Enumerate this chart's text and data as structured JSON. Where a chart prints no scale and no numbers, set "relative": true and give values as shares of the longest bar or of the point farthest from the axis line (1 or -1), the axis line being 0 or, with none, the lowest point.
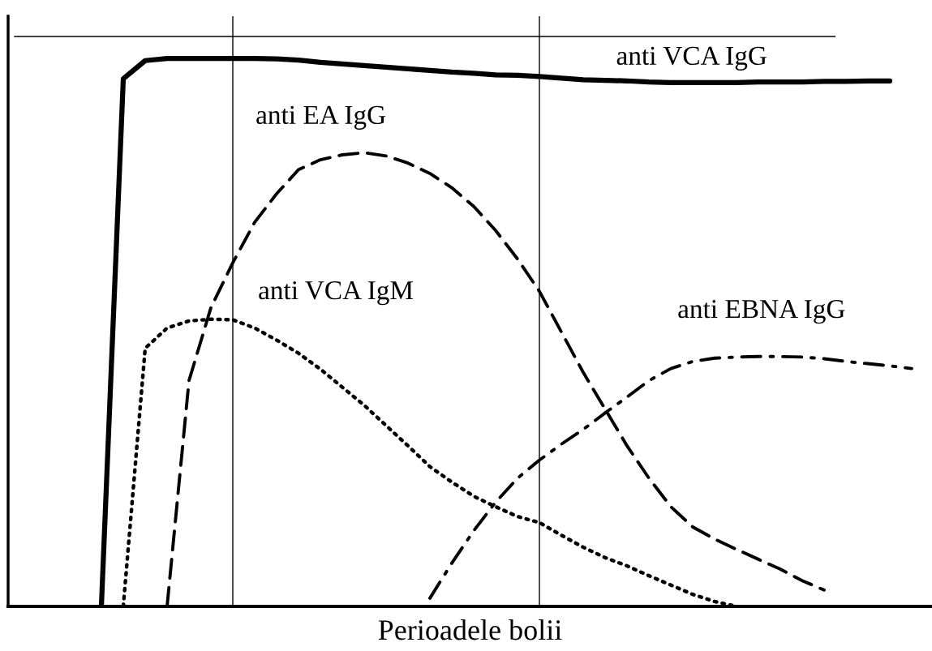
{
  "chart_data": {
    "type": "line",
    "relative": true,
    "xlabel": "Perioadele bolii",
    "grid": false,
    "legend": false,
    "marker": "none",
    "categories": [
      null,
      null,
      null,
      null,
      null,
      null,
      null,
      null,
      null,
      null,
      null,
      null,
      null,
      null,
      null,
      null,
      null,
      null,
      null,
      null,
      null,
      null,
      null,
      null,
      null,
      null,
      null,
      null,
      null,
      null,
      null,
      null,
      null,
      null,
      null,
      null,
      null,
      null,
      null,
      null,
      null,
      null
    ],
    "series": [
      {
        "name": "anti VCA IgG",
        "color": "#000000",
        "line_style": "solid",
        "values": [
          null,
          null,
          null,
          null,
          0,
          0.963,
          0.996,
          1.0,
          1.0,
          1.0,
          1.0,
          1.0,
          0.999,
          0.997,
          0.993,
          0.99,
          0.987,
          0.984,
          0.981,
          0.978,
          0.975,
          0.973,
          0.97,
          0.969,
          0.967,
          0.964,
          0.961,
          0.96,
          0.959,
          0.957,
          0.956,
          0.956,
          0.956,
          0.956,
          0.957,
          0.957,
          0.957,
          0.958,
          0.958,
          0.959,
          0.959,
          null
        ]
      },
      {
        "name": "anti EA IgG",
        "color": "#000000",
        "line_style": "dashed",
        "values": [
          null,
          null,
          null,
          null,
          null,
          null,
          null,
          0,
          0.412,
          0.545,
          0.627,
          0.701,
          0.753,
          0.797,
          0.815,
          0.824,
          0.828,
          0.822,
          0.809,
          0.79,
          0.764,
          0.73,
          0.686,
          0.634,
          0.575,
          0.501,
          0.427,
          0.36,
          0.293,
          0.234,
          0.182,
          0.145,
          0.123,
          0.104,
          0.086,
          0.068,
          0.047,
          0.03,
          null,
          null,
          null,
          null
        ]
      },
      {
        "name": "anti VCA IgM",
        "color": "#000000",
        "line_style": "dotted",
        "values": [
          null,
          null,
          null,
          null,
          null,
          0,
          0.471,
          0.508,
          0.521,
          0.524,
          0.523,
          0.508,
          0.486,
          0.462,
          0.433,
          0.4,
          0.367,
          0.33,
          0.293,
          0.255,
          0.227,
          0.201,
          0.182,
          0.164,
          0.153,
          0.13,
          0.108,
          0.089,
          0.074,
          0.056,
          0.039,
          0.022,
          0.009,
          0,
          null,
          null,
          null,
          null,
          null,
          null,
          null,
          null
        ]
      },
      {
        "name": "anti EBNA IgG",
        "color": "#000000",
        "line_style": "dashdot",
        "values": [
          null,
          null,
          null,
          null,
          null,
          null,
          null,
          null,
          null,
          null,
          null,
          null,
          null,
          null,
          null,
          null,
          null,
          null,
          null,
          0.015,
          0.079,
          0.138,
          0.19,
          0.234,
          0.267,
          0.296,
          0.323,
          0.353,
          0.382,
          0.412,
          0.434,
          0.447,
          0.453,
          0.455,
          0.456,
          0.456,
          0.455,
          0.452,
          0.447,
          0.443,
          0.439,
          0.434
        ]
      }
    ],
    "ref_lines": [
      {
        "axis": "y",
        "value": 1.04,
        "color": "#000000",
        "line_style": "solid"
      }
    ]
  }
}
